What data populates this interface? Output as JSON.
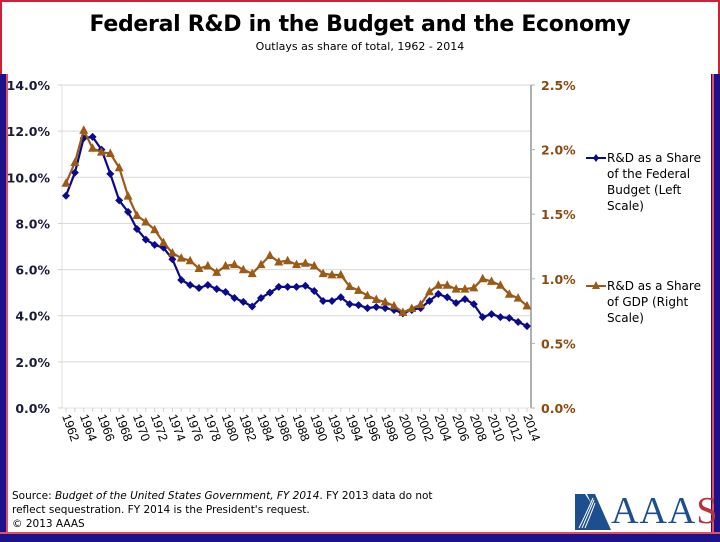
{
  "slide": {
    "title": "Federal R&D in the Budget and the Economy",
    "subtitle": "Outlays as share of total, 1962 - 2014",
    "source_prefix": "Source: ",
    "source_italic": "Budget of the United States Government, FY 2014",
    "source_rest": ". FY 2013 data do not",
    "source_line2": "reflect sequestration. FY 2014 is the President's request.",
    "copyright": "© 2013 AAAS",
    "logo_text_main": "AAA",
    "logo_text_end": "S",
    "colors": {
      "frame_blue": "#1d1289",
      "frame_red": "#cc2233",
      "logo_blue": "#1d4f8f",
      "logo_red": "#b8333a"
    }
  },
  "chart_data": {
    "type": "line",
    "title": "Federal R&D in the Budget and the Economy",
    "subtitle": "Outlays as share of total, 1962 - 2014",
    "xlabel": "",
    "ylabel": "",
    "grid": true,
    "legend_position": "right",
    "x": [
      1962,
      1963,
      1964,
      1965,
      1966,
      1967,
      1968,
      1969,
      1970,
      1971,
      1972,
      1973,
      1974,
      1975,
      1976,
      1977,
      1978,
      1979,
      1980,
      1981,
      1982,
      1983,
      1984,
      1985,
      1986,
      1987,
      1988,
      1989,
      1990,
      1991,
      1992,
      1993,
      1994,
      1995,
      1996,
      1997,
      1998,
      1999,
      2000,
      2001,
      2002,
      2003,
      2004,
      2005,
      2006,
      2007,
      2008,
      2009,
      2010,
      2011,
      2012,
      2013,
      2014
    ],
    "x_tick_labels": [
      "1962",
      "1964",
      "1966",
      "1968",
      "1970",
      "1972",
      "1974",
      "1976",
      "1978",
      "1980",
      "1982",
      "1984",
      "1986",
      "1988",
      "1990",
      "1992",
      "1994",
      "1996",
      "1998",
      "2000",
      "2002",
      "2004",
      "2006",
      "2008",
      "2010",
      "2012",
      "2014"
    ],
    "y_left": {
      "range": [
        0,
        14
      ],
      "ticks": [
        0,
        2,
        4,
        6,
        8,
        10,
        12,
        14
      ],
      "tick_labels": [
        "0.0%",
        "2.0%",
        "4.0%",
        "6.0%",
        "8.0%",
        "10.0%",
        "12.0%",
        "14.0%"
      ],
      "color": "#1a1a3a"
    },
    "y_right": {
      "range": [
        0,
        2.5
      ],
      "ticks": [
        0,
        0.5,
        1.0,
        1.5,
        2.0,
        2.5
      ],
      "tick_labels": [
        "0.0%",
        "0.5%",
        "1.0%",
        "1.5%",
        "2.0%",
        "2.5%"
      ],
      "color": "#8b4a10"
    },
    "series": [
      {
        "name": "R&D as a Share of the Federal Budget (Left Scale)",
        "axis": "left",
        "marker": "diamond",
        "color": "#0a0a8c",
        "legend_lines": [
          "R&D as a Share",
          "of the Federal",
          "Budget (Left",
          "Scale)"
        ],
        "values": [
          9.2,
          10.2,
          11.7,
          11.75,
          11.2,
          10.15,
          9.0,
          8.5,
          7.76,
          7.3,
          7.07,
          6.95,
          6.45,
          5.55,
          5.33,
          5.2,
          5.33,
          5.16,
          5.03,
          4.77,
          4.6,
          4.4,
          4.77,
          5.0,
          5.25,
          5.25,
          5.25,
          5.3,
          5.07,
          4.64,
          4.64,
          4.8,
          4.5,
          4.46,
          4.33,
          4.38,
          4.33,
          4.25,
          4.1,
          4.25,
          4.33,
          4.64,
          4.94,
          4.8,
          4.55,
          4.72,
          4.5,
          3.94,
          4.07,
          3.94,
          3.9,
          3.73,
          3.55
        ]
      },
      {
        "name": "R&D as a Share of GDP (Right Scale)",
        "axis": "right",
        "marker": "triangle",
        "color": "#9c5a17",
        "legend_lines": [
          "R&D as a Share",
          "of GDP (Right",
          "Scale)"
        ],
        "values": [
          1.74,
          1.9,
          2.15,
          2.01,
          1.98,
          1.97,
          1.86,
          1.64,
          1.49,
          1.44,
          1.38,
          1.28,
          1.2,
          1.16,
          1.14,
          1.08,
          1.1,
          1.05,
          1.1,
          1.11,
          1.07,
          1.04,
          1.11,
          1.18,
          1.13,
          1.14,
          1.11,
          1.12,
          1.1,
          1.04,
          1.03,
          1.03,
          0.94,
          0.91,
          0.87,
          0.84,
          0.82,
          0.79,
          0.74,
          0.77,
          0.8,
          0.9,
          0.95,
          0.95,
          0.92,
          0.92,
          0.93,
          1.0,
          0.98,
          0.95,
          0.88,
          0.85,
          0.79
        ]
      }
    ]
  }
}
